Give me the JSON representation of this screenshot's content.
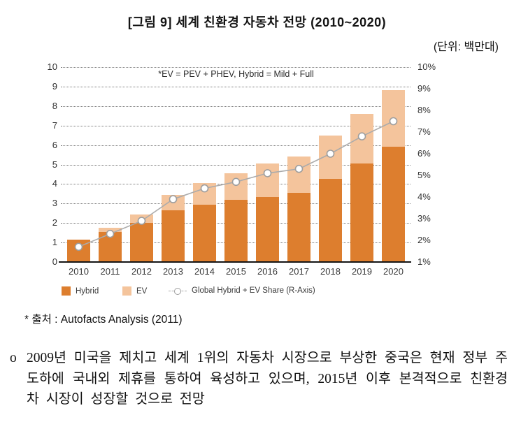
{
  "page": {
    "title": "[그림 9] 세계 친환경 자동차 전망 (2010~2020)",
    "unit_label": "(단위: 백만대)",
    "source": "* 출처 : Autofacts Analysis (2011)",
    "paragraph": {
      "bullet": "o",
      "text": "2009년 미국을 제치고 세계 1위의 자동차 시장으로 부상한 중국은 현재 정부 주도하에 국내외 제휴를 통하여 육성하고 있으며, 2015년 이후 본격적으로 친환경차 시장이 성장할 것으로 전망"
    }
  },
  "chart_data": {
    "type": "bar",
    "subtype": "stacked-bars-with-secondary-axis-line",
    "title": "[그림 9] 세계 친환경 자동차 전망 (2010~2020)",
    "unit": "(단위: 백만대)",
    "annotation": "*EV = PEV + PHEV, Hybrid = Mild + Full",
    "categories": [
      "2010",
      "2011",
      "2012",
      "2013",
      "2014",
      "2015",
      "2016",
      "2017",
      "2018",
      "2019",
      "2020"
    ],
    "series": [
      {
        "name": "Hybrid",
        "type": "bar",
        "stack": true,
        "color": "#DD7E2E",
        "values": [
          1.15,
          1.55,
          2.0,
          2.65,
          2.95,
          3.2,
          3.35,
          3.55,
          4.25,
          5.05,
          5.9
        ]
      },
      {
        "name": "EV",
        "type": "bar",
        "stack": true,
        "color": "#F4C49C",
        "values": [
          0.0,
          0.2,
          0.45,
          0.8,
          1.1,
          1.35,
          1.7,
          1.85,
          2.25,
          2.55,
          2.9
        ]
      },
      {
        "name": "Global Hybrid + EV Share (R-Axis)",
        "type": "line",
        "axis": "right",
        "color": "#ABABAB",
        "marker": "open-circle",
        "values": [
          1.7,
          2.3,
          2.9,
          3.9,
          4.4,
          4.7,
          5.1,
          5.3,
          6.0,
          6.8,
          7.5
        ]
      }
    ],
    "left_axis": {
      "min": 0,
      "max": 10,
      "ticks": [
        10,
        9,
        8,
        7,
        6,
        5,
        4,
        3,
        2,
        1,
        0
      ]
    },
    "right_axis": {
      "min": 1,
      "max": 10,
      "unit": "%",
      "ticks": [
        "10%",
        "9%",
        "8%",
        "7%",
        "6%",
        "5%",
        "4%",
        "3%",
        "2%",
        "1%"
      ]
    },
    "legend": [
      "Hybrid",
      "EV",
      "Global Hybrid + EV Share (R-Axis)"
    ],
    "grid": "dotted-horizontal",
    "legend_position": "bottom"
  }
}
